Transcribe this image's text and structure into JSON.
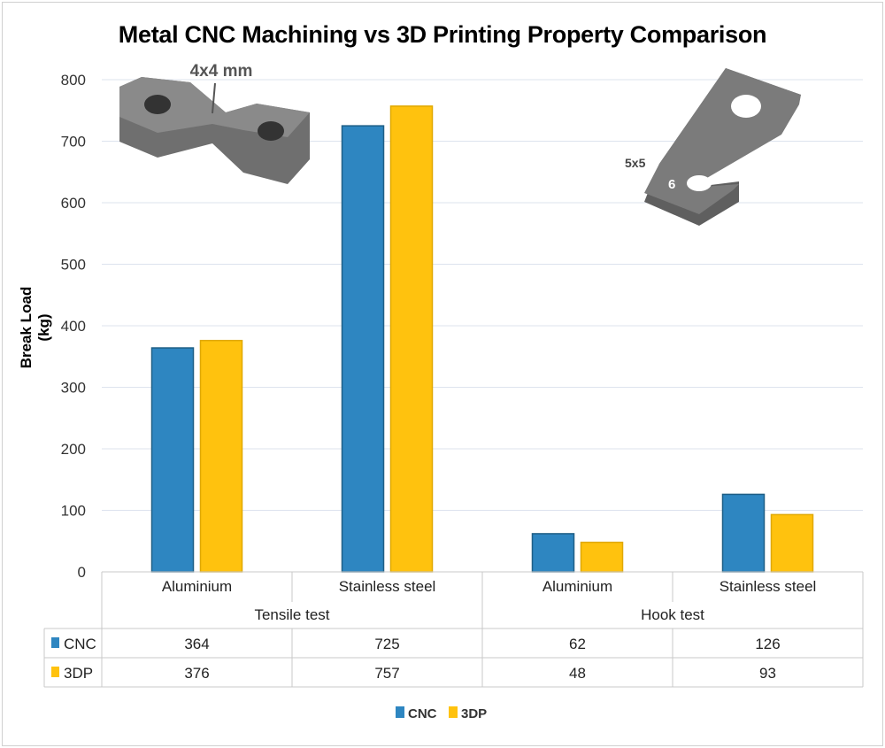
{
  "chart_data": {
    "type": "bar",
    "title": "Metal CNC Machining vs 3D Printing Property Comparison",
    "ylabel": "Break Load (kg)",
    "xlabel": "",
    "ylim": [
      0,
      800
    ],
    "yticks": [
      0,
      100,
      200,
      300,
      400,
      500,
      600,
      700,
      800
    ],
    "grid": true,
    "categories": [
      "Aluminium",
      "Stainless steel",
      "Aluminium",
      "Stainless steel"
    ],
    "groups": [
      {
        "label": "Tensile test",
        "span": 2
      },
      {
        "label": "Hook test",
        "span": 2
      }
    ],
    "series": [
      {
        "name": "CNC",
        "color": "#2e86c1",
        "values": [
          364,
          725,
          62,
          126
        ]
      },
      {
        "name": "3DP",
        "color": "#ffc20e",
        "values": [
          376,
          757,
          48,
          93
        ]
      }
    ],
    "data_table": true,
    "legend": "bottom",
    "annotations": {
      "tensile_part": "4x4 mm",
      "hook_part_size": "5x5",
      "hook_part_hole": "6"
    }
  }
}
